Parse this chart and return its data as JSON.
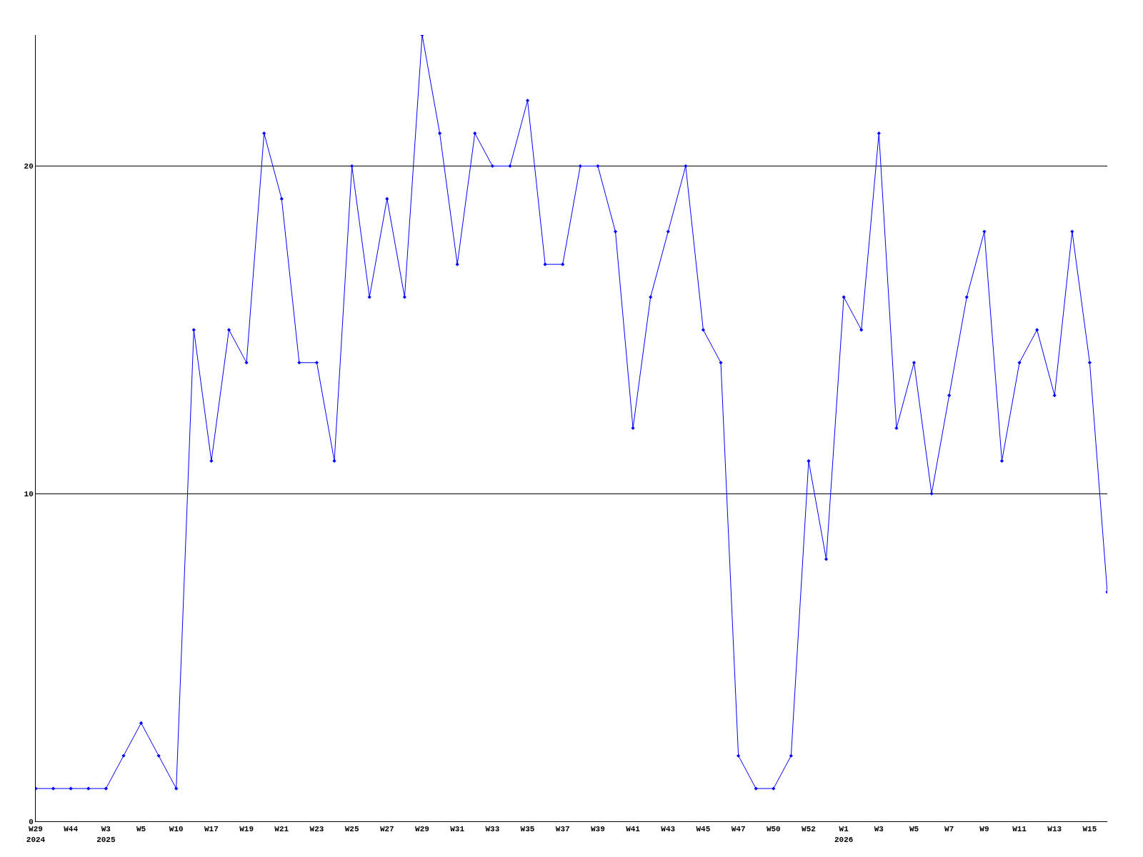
{
  "chart_data": {
    "type": "line",
    "categories": [
      "W29\n2024",
      null,
      "W44",
      null,
      "W3\n2025",
      null,
      "W5",
      null,
      "W10",
      null,
      "W17",
      null,
      "W19",
      null,
      "W21",
      null,
      "W23",
      null,
      "W25",
      null,
      "W27",
      null,
      "W29",
      null,
      "W31",
      null,
      "W33",
      null,
      "W35",
      null,
      "W37",
      null,
      "W39",
      null,
      "W41",
      null,
      "W43",
      null,
      "W45",
      null,
      "W47",
      null,
      "W50",
      null,
      "W52",
      null,
      "W1\n2026",
      null,
      "W3",
      null,
      "W5",
      null,
      "W7",
      null,
      "W9",
      null,
      "W11",
      null,
      "W13",
      null,
      "W15",
      null
    ],
    "series": [
      {
        "color": "#0000ff",
        "values": [
          1,
          1,
          1,
          1,
          1,
          2,
          3,
          2,
          1,
          15,
          11,
          15,
          14,
          21,
          19,
          14,
          14,
          11,
          20,
          16,
          19,
          16,
          24,
          21,
          17,
          21,
          20,
          20,
          22,
          17,
          17,
          20,
          20,
          18,
          12,
          16,
          18,
          20,
          15,
          14,
          2,
          1,
          1,
          2,
          11,
          8,
          16,
          15,
          21,
          12,
          14,
          10,
          13,
          16,
          18,
          11,
          14,
          15,
          13,
          18,
          14,
          7
        ]
      }
    ],
    "ylim": [
      0,
      24
    ],
    "yticks": [
      0,
      10,
      20
    ],
    "grid": "y",
    "marker": "diamond",
    "line_style": "solid"
  }
}
